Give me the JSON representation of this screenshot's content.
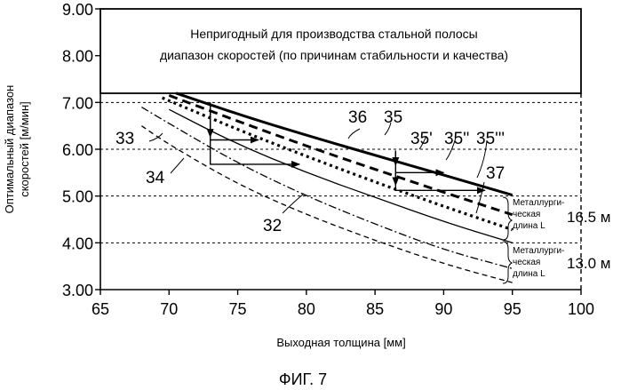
{
  "chart_data": {
    "type": "line",
    "title": "",
    "xlabel": "Выходная толщина [мм]",
    "ylabel_lines": [
      "Оптимальный диапазон",
      "скоростей [м/мин]"
    ],
    "xlim": [
      65,
      100
    ],
    "ylim": [
      3.0,
      9.0
    ],
    "x_ticks": [
      "65",
      "70",
      "75",
      "80",
      "85",
      "90",
      "95",
      "100"
    ],
    "y_ticks": [
      "3.00",
      "4.00",
      "5.00",
      "6.00",
      "7.00",
      "8.00",
      "9.00"
    ],
    "grid_y": [
      4.0,
      5.0,
      6.0,
      7.0
    ],
    "unsuitable_region": {
      "y_from": 7.2,
      "y_to": 9.0,
      "text_lines": [
        "Непригодный для производства стальной полосы",
        "диапазон скоростей (по причинам стабильности и качества)"
      ]
    },
    "series": [
      {
        "name": "35",
        "style": "solid-thick",
        "x": [
          70.5,
          75,
          80,
          85,
          90,
          95
        ],
        "y": [
          7.2,
          6.75,
          6.3,
          5.87,
          5.45,
          5.02
        ]
      },
      {
        "name": "36",
        "style": "dashed-thick",
        "x": [
          70,
          75,
          80,
          85,
          90,
          95
        ],
        "y": [
          7.15,
          6.6,
          6.07,
          5.57,
          5.08,
          4.6
        ]
      },
      {
        "name": "35'",
        "style": "dotted-thick",
        "x": [
          69.5,
          75,
          80,
          85,
          90,
          95
        ],
        "y": [
          7.1,
          6.42,
          5.85,
          5.3,
          4.78,
          4.28
        ]
      },
      {
        "name": "32",
        "style": "solid",
        "x": [
          70,
          75,
          80,
          85,
          90,
          95
        ],
        "y": [
          6.85,
          6.1,
          5.5,
          4.97,
          4.45,
          4.0
        ]
      },
      {
        "name": "33",
        "style": "dashdot",
        "x": [
          68,
          70,
          75,
          80,
          85,
          90,
          95
        ],
        "y": [
          6.9,
          6.55,
          5.7,
          5.0,
          4.4,
          3.85,
          3.45
        ]
      },
      {
        "name": "34",
        "style": "dashed-thin",
        "x": [
          68,
          70,
          75,
          80,
          85,
          90,
          95
        ],
        "y": [
          6.5,
          6.1,
          5.25,
          4.6,
          4.05,
          3.55,
          3.15
        ]
      }
    ],
    "step_markers": [
      {
        "x": [
          73,
          73,
          79.5
        ],
        "y": [
          7.0,
          5.68,
          5.68
        ]
      },
      {
        "x": [
          73,
          76.5
        ],
        "y": [
          6.2,
          6.2
        ]
      },
      {
        "x": [
          86.5,
          86.5,
          90
        ],
        "y": [
          5.97,
          5.5,
          5.5
        ]
      },
      {
        "x": [
          86.5,
          86.5,
          93
        ],
        "y": [
          5.5,
          5.12,
          5.12
        ]
      }
    ],
    "reference_labels": [
      "36",
      "35",
      "35'",
      "35''",
      "35'''",
      "37",
      "33",
      "34",
      "32"
    ],
    "metallurgical_length": [
      {
        "note_lines": [
          "Металлурги-",
          "ческая",
          "длина L"
        ],
        "value": "16.5 м"
      },
      {
        "note_lines": [
          "Металлурги-",
          "ческая",
          "длина L"
        ],
        "value": "13.0 м"
      }
    ]
  },
  "caption": "ФИГ. 7"
}
